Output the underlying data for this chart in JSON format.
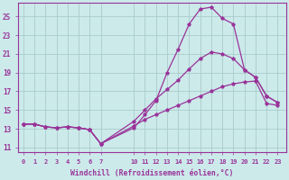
{
  "xlabel": "Windchill (Refroidissement éolien,°C)",
  "background_color": "#cceaea",
  "grid_color": "#aacccc",
  "line_color": "#993399",
  "xticks": [
    0,
    1,
    2,
    3,
    4,
    5,
    6,
    7,
    10,
    11,
    12,
    13,
    14,
    15,
    16,
    17,
    18,
    19,
    20,
    21,
    22,
    23
  ],
  "yticks": [
    11,
    13,
    15,
    17,
    19,
    21,
    23,
    25
  ],
  "xlim": [
    -0.5,
    23.8
  ],
  "ylim": [
    10.5,
    26.5
  ],
  "line_top_x": [
    0,
    1,
    2,
    3,
    4,
    5,
    6,
    7,
    10,
    11,
    12,
    13,
    14,
    15,
    16,
    17,
    18,
    19,
    20,
    21,
    22,
    23
  ],
  "line_top_y": [
    13.5,
    13.5,
    13.2,
    13.1,
    13.2,
    13.1,
    12.9,
    11.4,
    13.1,
    14.5,
    16.0,
    19.0,
    21.5,
    24.2,
    25.8,
    26.0,
    24.8,
    24.2,
    19.3,
    18.5,
    16.5,
    15.8
  ],
  "line_mid_x": [
    0,
    1,
    2,
    3,
    4,
    5,
    6,
    7,
    10,
    11,
    12,
    13,
    14,
    15,
    16,
    17,
    18,
    19,
    20,
    21,
    22,
    23
  ],
  "line_mid_y": [
    13.5,
    13.5,
    13.2,
    13.1,
    13.2,
    13.1,
    12.9,
    11.4,
    13.8,
    15.0,
    16.2,
    17.2,
    18.2,
    19.4,
    20.5,
    21.2,
    21.0,
    20.5,
    19.3,
    18.5,
    16.5,
    15.8
  ],
  "line_bot_x": [
    0,
    1,
    2,
    3,
    4,
    5,
    6,
    7,
    10,
    11,
    12,
    13,
    14,
    15,
    16,
    17,
    18,
    19,
    20,
    21,
    22,
    23
  ],
  "line_bot_y": [
    13.5,
    13.5,
    13.2,
    13.1,
    13.2,
    13.1,
    12.9,
    11.4,
    13.3,
    14.0,
    14.5,
    15.0,
    15.5,
    16.0,
    16.5,
    17.0,
    17.5,
    17.8,
    18.0,
    18.1,
    15.7,
    15.5
  ]
}
